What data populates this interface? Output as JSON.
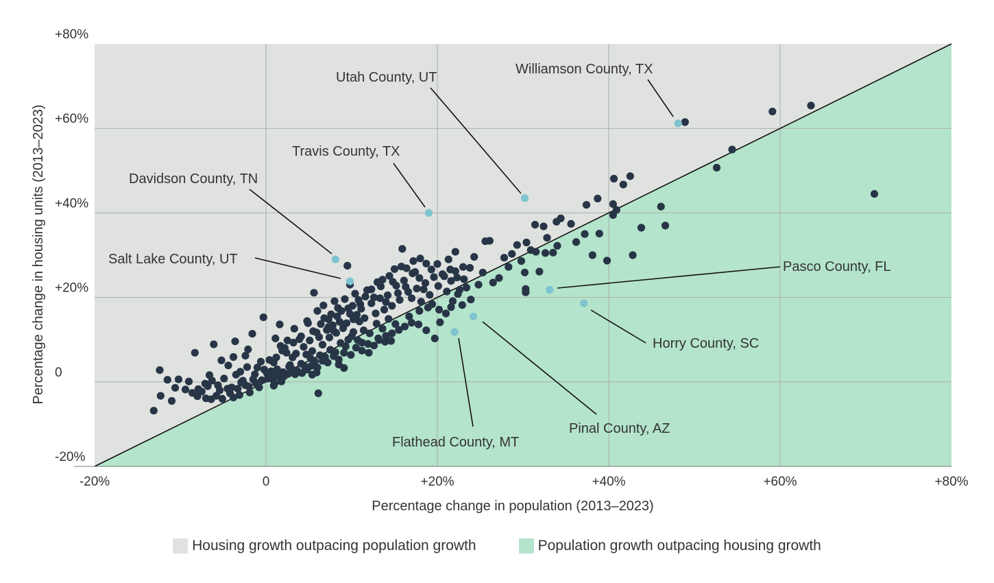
{
  "chart_data": {
    "type": "scatter",
    "xlabel": "Percentage change in population (2013–2023)",
    "ylabel": "Percentage change in housing units (2013–2023)",
    "xlim": [
      -20,
      80
    ],
    "ylim": [
      -20,
      80
    ],
    "x_ticks": [
      {
        "value": -20,
        "label": "-20%"
      },
      {
        "value": 0,
        "label": "0"
      },
      {
        "value": 20,
        "label": "+20%"
      },
      {
        "value": 40,
        "label": "+40%"
      },
      {
        "value": 60,
        "label": "+60%"
      },
      {
        "value": 80,
        "label": "+80%"
      }
    ],
    "y_ticks": [
      {
        "value": -20,
        "label": "-20%"
      },
      {
        "value": 0,
        "label": "0"
      },
      {
        "value": 20,
        "label": "+20%"
      },
      {
        "value": 40,
        "label": "+40%"
      },
      {
        "value": 60,
        "label": "+60%"
      },
      {
        "value": 80,
        "label": "+80%"
      }
    ],
    "grid": true,
    "reference_line": "y = x",
    "regions": [
      {
        "label": "Housing growth outpacing population growth",
        "color": "#dfe2df",
        "side": "above"
      },
      {
        "label": "Population growth outpacing housing growth",
        "color": "#b4e4cb",
        "side": "below"
      }
    ],
    "point_color": "#273547",
    "highlight_color": "#7ec3cf",
    "highlighted": [
      {
        "name": "Williamson County, TX",
        "x": 48.1,
        "y": 61.2
      },
      {
        "name": "Utah County, UT",
        "x": 30.2,
        "y": 43.5
      },
      {
        "name": "Travis County, TX",
        "x": 19.0,
        "y": 40.0
      },
      {
        "name": "Davidson County, TN",
        "x": 8.1,
        "y": 29.0
      },
      {
        "name": "Salt Lake County, UT",
        "x": 9.8,
        "y": 23.8
      },
      {
        "name": "Pasco County, FL",
        "x": 33.1,
        "y": 21.8
      },
      {
        "name": "Horry County, SC",
        "x": 37.1,
        "y": 18.6
      },
      {
        "name": "Pinal County, AZ",
        "x": 24.2,
        "y": 15.5
      },
      {
        "name": "Flathead County, MT",
        "x": 22.0,
        "y": 11.8
      }
    ],
    "points": [
      [
        -13.1,
        -6.8
      ],
      [
        -12.3,
        -3.3
      ],
      [
        -11.5,
        0.5
      ],
      [
        -11.0,
        -4.5
      ],
      [
        -10.2,
        0.6
      ],
      [
        -9.0,
        0.1
      ],
      [
        -8.6,
        -2.6
      ],
      [
        -7.9,
        -1.7
      ],
      [
        -7.0,
        -3.9
      ],
      [
        -6.4,
        -4.1
      ],
      [
        -5.8,
        -3.3
      ],
      [
        -5.1,
        -4.0
      ],
      [
        -4.5,
        -1.6
      ],
      [
        -3.8,
        -3.7
      ],
      [
        -3.1,
        -3.1
      ],
      [
        -2.4,
        -0.8
      ],
      [
        -1.9,
        -2.5
      ],
      [
        -0.8,
        -1.3
      ],
      [
        -12.4,
        2.8
      ],
      [
        -8.3,
        6.9
      ],
      [
        -6.1,
        8.9
      ],
      [
        -5.2,
        5.1
      ],
      [
        -3.6,
        9.6
      ],
      [
        -2.1,
        7.7
      ],
      [
        -1.6,
        11.4
      ],
      [
        -0.3,
        15.3
      ],
      [
        1.1,
        10.3
      ],
      [
        1.6,
        13.6
      ],
      [
        2.4,
        6.9
      ],
      [
        3.2,
        9.3
      ],
      [
        4.9,
        13.9
      ],
      [
        5.6,
        21.1
      ],
      [
        6.4,
        13.7
      ],
      [
        6.8,
        15.1
      ],
      [
        7.6,
        16.0
      ],
      [
        8.0,
        19.1
      ],
      [
        9.5,
        27.5
      ],
      [
        9.8,
        23.0
      ],
      [
        10.9,
        14.3
      ],
      [
        -4.4,
        3.9
      ],
      [
        -3.8,
        5.9
      ],
      [
        -3.0,
        2.4
      ],
      [
        -2.4,
        6.2
      ],
      [
        -1.5,
        0.6
      ],
      [
        -1.0,
        3.4
      ],
      [
        -0.2,
        2.9
      ],
      [
        0.4,
        5.2
      ],
      [
        0.9,
        4.6
      ],
      [
        1.3,
        3.0
      ],
      [
        1.9,
        7.4
      ],
      [
        2.2,
        8.0
      ],
      [
        2.8,
        4.0
      ],
      [
        3.1,
        5.8
      ],
      [
        3.5,
        6.7
      ],
      [
        3.9,
        10.1
      ],
      [
        4.4,
        8.3
      ],
      [
        4.7,
        6.5
      ],
      [
        5.1,
        9.8
      ],
      [
        5.4,
        7.3
      ],
      [
        5.9,
        11.7
      ],
      [
        6.2,
        10.6
      ],
      [
        6.6,
        8.8
      ],
      [
        7.1,
        12.3
      ],
      [
        7.4,
        10.5
      ],
      [
        7.8,
        13.4
      ],
      [
        8.2,
        11.6
      ],
      [
        8.6,
        14.2
      ],
      [
        9.0,
        12.7
      ],
      [
        9.4,
        13.9
      ],
      [
        9.8,
        16.1
      ],
      [
        10.2,
        14.8
      ],
      [
        10.6,
        15.9
      ],
      [
        11.1,
        17.3
      ],
      [
        11.5,
        15.1
      ],
      [
        0.2,
        0.8
      ],
      [
        0.6,
        1.6
      ],
      [
        1.0,
        -0.4
      ],
      [
        1.5,
        1.2
      ],
      [
        2.0,
        2.3
      ],
      [
        2.6,
        1.9
      ],
      [
        3.0,
        3.1
      ],
      [
        3.6,
        2.7
      ],
      [
        4.1,
        4.3
      ],
      [
        4.6,
        3.6
      ],
      [
        5.2,
        5.6
      ],
      [
        5.7,
        4.8
      ],
      [
        6.3,
        6.3
      ],
      [
        6.9,
        5.9
      ],
      [
        7.5,
        7.6
      ],
      [
        8.1,
        7.0
      ],
      [
        8.7,
        9.2
      ],
      [
        9.3,
        8.4
      ],
      [
        10.0,
        10.8
      ],
      [
        10.7,
        9.9
      ],
      [
        11.4,
        12.2
      ],
      [
        12.1,
        11.5
      ],
      [
        12.9,
        13.8
      ],
      [
        13.6,
        12.6
      ],
      [
        14.3,
        14.9
      ],
      [
        15.1,
        13.7
      ],
      [
        12.3,
        18.6
      ],
      [
        12.8,
        16.2
      ],
      [
        13.3,
        19.8
      ],
      [
        13.8,
        17.1
      ],
      [
        14.2,
        20.5
      ],
      [
        14.7,
        18.0
      ],
      [
        15.2,
        22.8
      ],
      [
        15.6,
        19.4
      ],
      [
        16.1,
        24.0
      ],
      [
        16.6,
        21.3
      ],
      [
        17.1,
        25.7
      ],
      [
        17.6,
        22.1
      ],
      [
        18.1,
        19.0
      ],
      [
        18.6,
        23.4
      ],
      [
        19.1,
        20.6
      ],
      [
        19.6,
        24.8
      ],
      [
        20.1,
        22.7
      ],
      [
        20.6,
        25.5
      ],
      [
        21.1,
        21.4
      ],
      [
        21.6,
        23.9
      ],
      [
        22.1,
        26.2
      ],
      [
        22.6,
        21.8
      ],
      [
        23.1,
        24.3
      ],
      [
        15.9,
        31.5
      ],
      [
        17.4,
        26.0
      ],
      [
        18.7,
        28.0
      ],
      [
        21.3,
        29.0
      ],
      [
        22.1,
        30.8
      ],
      [
        23.0,
        27.2
      ],
      [
        23.8,
        27.0
      ],
      [
        24.3,
        29.6
      ],
      [
        24.8,
        23.0
      ],
      [
        25.3,
        25.9
      ],
      [
        25.6,
        33.3
      ],
      [
        26.1,
        33.4
      ],
      [
        26.5,
        23.5
      ],
      [
        27.2,
        24.6
      ],
      [
        27.8,
        29.4
      ],
      [
        28.3,
        27.2
      ],
      [
        28.7,
        30.3
      ],
      [
        29.3,
        32.4
      ],
      [
        29.8,
        28.6
      ],
      [
        30.4,
        33.0
      ],
      [
        30.9,
        31.2
      ],
      [
        31.4,
        37.2
      ],
      [
        31.9,
        26.1
      ],
      [
        32.4,
        36.8
      ],
      [
        32.8,
        34.1
      ],
      [
        33.5,
        30.6
      ],
      [
        33.9,
        37.9
      ],
      [
        34.4,
        38.7
      ],
      [
        35.6,
        37.4
      ],
      [
        30.2,
        25.9
      ],
      [
        30.3,
        22.0
      ],
      [
        30.3,
        21.2
      ],
      [
        31.5,
        30.8
      ],
      [
        32.6,
        30.5
      ],
      [
        34.0,
        32.2
      ],
      [
        36.2,
        33.1
      ],
      [
        37.2,
        35.0
      ],
      [
        38.1,
        30.0
      ],
      [
        38.9,
        35.1
      ],
      [
        39.8,
        28.7
      ],
      [
        40.9,
        40.7
      ],
      [
        42.8,
        30.0
      ],
      [
        43.8,
        36.5
      ],
      [
        46.6,
        37.0
      ],
      [
        46.1,
        41.5
      ],
      [
        37.4,
        41.9
      ],
      [
        38.7,
        43.4
      ],
      [
        40.5,
        42.1
      ],
      [
        40.5,
        39.5
      ],
      [
        40.6,
        48.1
      ],
      [
        41.7,
        46.7
      ],
      [
        42.5,
        48.7
      ],
      [
        48.9,
        61.5
      ],
      [
        52.6,
        50.7
      ],
      [
        54.4,
        55.0
      ],
      [
        59.1,
        64.0
      ],
      [
        63.6,
        65.4
      ],
      [
        71.0,
        44.5
      ],
      [
        16.7,
        15.5
      ],
      [
        17.8,
        13.6
      ],
      [
        18.7,
        12.2
      ],
      [
        19.7,
        10.3
      ],
      [
        20.3,
        14.1
      ],
      [
        21.6,
        17.7
      ],
      [
        22.9,
        18.2
      ],
      [
        23.9,
        19.5
      ],
      [
        13.1,
        10.3
      ],
      [
        13.9,
        9.5
      ],
      [
        14.6,
        9.7
      ],
      [
        12.0,
        6.9
      ],
      [
        11.2,
        9.3
      ],
      [
        10.2,
        11.8
      ],
      [
        9.6,
        10.0
      ],
      [
        6.1,
        -2.7
      ],
      [
        8.5,
        4.1
      ],
      [
        9.1,
        3.3
      ],
      [
        5.9,
        2.2
      ],
      [
        5.4,
        1.7
      ],
      [
        4.6,
        3.1
      ],
      [
        2.7,
        3.6
      ],
      [
        1.8,
        0.1
      ],
      [
        0.9,
        -0.9
      ],
      [
        0.6,
        2.5
      ],
      [
        -9.4,
        -1.8
      ],
      [
        -7.1,
        -0.4
      ],
      [
        -6.6,
        1.6
      ],
      [
        -5.4,
        -2.0
      ],
      [
        -4.9,
        0.8
      ],
      [
        -4.0,
        -1.3
      ],
      [
        -3.5,
        1.7
      ],
      [
        -2.7,
        0.3
      ],
      [
        -2.2,
        3.5
      ],
      [
        -1.3,
        1.8
      ],
      [
        -0.6,
        4.8
      ],
      [
        0.1,
        2.1
      ],
      [
        1.2,
        5.8
      ],
      [
        1.7,
        8.5
      ],
      [
        2.5,
        9.8
      ],
      [
        3.3,
        12.6
      ],
      [
        4.1,
        10.8
      ],
      [
        4.8,
        14.4
      ],
      [
        5.5,
        12.0
      ],
      [
        6.0,
        16.8
      ],
      [
        6.7,
        18.1
      ],
      [
        7.3,
        14.8
      ],
      [
        8.4,
        17.5
      ],
      [
        9.2,
        19.6
      ],
      [
        10.4,
        20.9
      ],
      [
        11.0,
        18.4
      ],
      [
        11.8,
        21.7
      ],
      [
        12.6,
        20.0
      ],
      [
        13.4,
        22.6
      ],
      [
        14.0,
        18.9
      ],
      [
        14.8,
        23.7
      ],
      [
        15.4,
        21.0
      ],
      [
        16.3,
        22.5
      ],
      [
        17.0,
        19.8
      ],
      [
        17.9,
        24.6
      ],
      [
        18.4,
        21.9
      ],
      [
        19.4,
        18.4
      ],
      [
        20.2,
        17.1
      ],
      [
        21.0,
        16.2
      ],
      [
        21.8,
        19.1
      ],
      [
        22.4,
        20.8
      ],
      [
        23.4,
        22.3
      ],
      [
        -10.6,
        -1.4
      ],
      [
        -8.0,
        -3.4
      ],
      [
        -7.5,
        -2.3
      ],
      [
        -6.8,
        -1.0
      ],
      [
        -6.3,
        0.3
      ],
      [
        -5.6,
        -0.8
      ],
      [
        -4.2,
        -2.7
      ],
      [
        -3.3,
        -1.6
      ],
      [
        -2.9,
        -0.1
      ],
      [
        -2.0,
        -1.1
      ],
      [
        -1.2,
        -0.3
      ],
      [
        -0.5,
        0.4
      ],
      [
        0.3,
        1.2
      ],
      [
        0.8,
        0.6
      ],
      [
        1.4,
        1.9
      ],
      [
        2.1,
        1.3
      ],
      [
        2.9,
        2.8
      ],
      [
        3.4,
        1.8
      ],
      [
        4.2,
        2.1
      ],
      [
        4.8,
        2.9
      ],
      [
        5.3,
        3.8
      ],
      [
        6.0,
        3.4
      ],
      [
        6.6,
        5.0
      ],
      [
        7.2,
        4.6
      ],
      [
        7.9,
        6.1
      ],
      [
        8.5,
        5.3
      ],
      [
        9.1,
        6.9
      ],
      [
        9.9,
        6.4
      ],
      [
        10.5,
        8.1
      ],
      [
        11.2,
        7.4
      ],
      [
        11.9,
        9.0
      ],
      [
        12.6,
        8.6
      ],
      [
        13.2,
        9.9
      ],
      [
        14.0,
        10.9
      ],
      [
        14.7,
        11.5
      ],
      [
        15.5,
        12.3
      ],
      [
        16.2,
        13.1
      ],
      [
        17.0,
        14.0
      ],
      [
        17.9,
        16.8
      ],
      [
        18.9,
        17.6
      ],
      [
        7.3,
        13.0
      ],
      [
        7.9,
        12.1
      ],
      [
        8.3,
        15.5
      ],
      [
        8.8,
        16.8
      ],
      [
        9.6,
        17.4
      ],
      [
        10.1,
        18.0
      ],
      [
        10.8,
        19.4
      ],
      [
        11.6,
        20.2
      ],
      [
        12.3,
        21.9
      ],
      [
        13.0,
        23.6
      ],
      [
        13.6,
        24.2
      ],
      [
        14.4,
        25.1
      ],
      [
        15.0,
        26.7
      ],
      [
        15.8,
        27.3
      ],
      [
        16.4,
        26.9
      ],
      [
        17.2,
        28.6
      ],
      [
        18.0,
        29.2
      ],
      [
        19.3,
        26.6
      ],
      [
        20.0,
        27.9
      ],
      [
        20.8,
        25.0
      ],
      [
        21.5,
        26.6
      ],
      [
        22.3,
        24.7
      ]
    ]
  },
  "legend": {
    "above_label": "Housing growth outpacing population growth",
    "below_label": "Population growth outpacing housing growth"
  }
}
